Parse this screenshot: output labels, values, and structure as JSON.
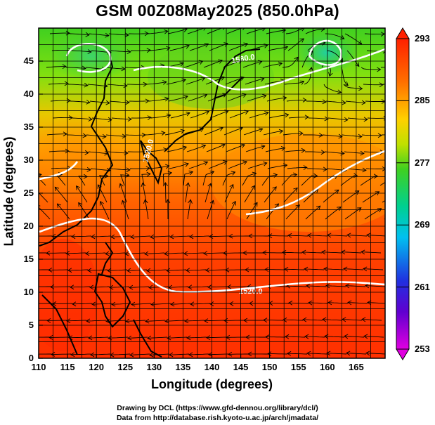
{
  "title": "GSM 00Z08May2025 (850.0hPa)",
  "xlabel": "Longitude (degrees)",
  "ylabel": "Latitude  (degrees)",
  "credits": [
    "Drawing by DCL (https://www.gfd-dennou.org/library/dcl/)",
    "Data from http://database.rish.kyoto-u.ac.jp/arch/jmadata/"
  ],
  "map": {
    "type": "temperature-shading-with-streamlines-and-height-contours",
    "lon_range": [
      110,
      170
    ],
    "lat_range": [
      0,
      50
    ],
    "x_ticks": [
      "110",
      "115",
      "120",
      "125",
      "130",
      "135",
      "140",
      "145",
      "150",
      "155",
      "160",
      "165"
    ],
    "y_ticks": [
      "0",
      "5",
      "10",
      "15",
      "20",
      "25",
      "30",
      "35",
      "40",
      "45"
    ],
    "contour_labels": [
      "1520.0",
      "1520.0",
      "1580.0"
    ]
  },
  "colorbar": {
    "ticks": [
      "253",
      "261",
      "269",
      "277",
      "285",
      "293"
    ],
    "range": [
      253,
      293
    ],
    "colors": [
      "#e000e0",
      "#2030e0",
      "#00b0f0",
      "#20d060",
      "#60e000",
      "#ffd000",
      "#ff8000",
      "#ff2000"
    ]
  }
}
